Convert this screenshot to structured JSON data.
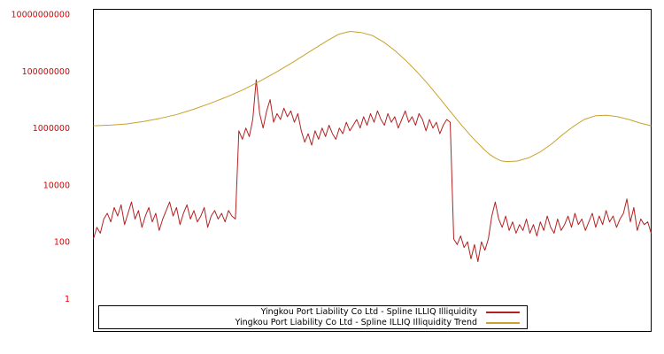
{
  "chart_data": {
    "type": "line",
    "title": "",
    "xlabel": "",
    "ylabel": "",
    "y_scale": "log",
    "grid": false,
    "legend_position": "bottom-center-inside",
    "axis_label_color": "#dd0000",
    "plot_border_color": "#000000",
    "background_color": "#ffffff",
    "y_tick_labels": [
      "1",
      "100",
      "10000",
      "1000000",
      "100000000",
      "10000000000"
    ],
    "y_tick_values": [
      1,
      100,
      10000,
      1000000,
      100000000,
      10000000000
    ],
    "ylim": [
      0.07,
      15000000000
    ],
    "series": [
      {
        "name": "Yingkou Port Liability Co Ltd - Spline ILLIQ Illiquidity",
        "color": "#b22222",
        "x_spacing": "even 0-1",
        "values": [
          125,
          320,
          200,
          630,
          1000,
          500,
          1600,
          800,
          2000,
          400,
          1000,
          2500,
          630,
          1250,
          320,
          800,
          1600,
          500,
          1000,
          250,
          630,
          1250,
          2500,
          800,
          1600,
          400,
          1000,
          2000,
          630,
          1250,
          500,
          800,
          1600,
          320,
          800,
          1250,
          630,
          1000,
          500,
          1250,
          800,
          630,
          800000.0,
          400000.0,
          1000000.0,
          500000.0,
          2000000.0,
          50000000.0,
          3200000.0,
          1000000.0,
          4000000.0,
          10000000.0,
          1600000.0,
          3200000.0,
          2000000.0,
          5000000.0,
          2500000.0,
          4000000.0,
          1600000.0,
          3200000.0,
          800000.0,
          320000.0,
          630000.0,
          250000.0,
          800000.0,
          400000.0,
          1000000.0,
          500000.0,
          1250000.0,
          630000.0,
          400000.0,
          1000000.0,
          630000.0,
          1600000.0,
          800000.0,
          1250000.0,
          2000000.0,
          1000000.0,
          2500000.0,
          1250000.0,
          3200000.0,
          1600000.0,
          4000000.0,
          2000000.0,
          1250000.0,
          3200000.0,
          1600000.0,
          2500000.0,
          1000000.0,
          2000000.0,
          4000000.0,
          1600000.0,
          2500000.0,
          1250000.0,
          3200000.0,
          2000000.0,
          800000.0,
          2000000.0,
          1000000.0,
          1600000.0,
          630000.0,
          1250000.0,
          2000000.0,
          1600000.0,
          125,
          80,
          160,
          63,
          100,
          25,
          80,
          20,
          100,
          50,
          125,
          800,
          2500,
          630,
          320,
          800,
          250,
          500,
          200,
          400,
          250,
          630,
          200,
          400,
          160,
          500,
          250,
          800,
          320,
          200,
          630,
          250,
          400,
          800,
          320,
          1000,
          400,
          630,
          250,
          500,
          1000,
          320,
          800,
          400,
          1250,
          500,
          800,
          320,
          630,
          1000,
          3200,
          500,
          1600,
          250,
          630,
          400,
          500,
          200
        ]
      },
      {
        "name": "Yingkou Port Liability Co Ltd - Spline ILLIQ Illiquidity Trend",
        "color": "#c8a22c",
        "points": [
          [
            0.0,
            1200000.0
          ],
          [
            0.03,
            1260000.0
          ],
          [
            0.06,
            1400000.0
          ],
          [
            0.09,
            1700000.0
          ],
          [
            0.12,
            2200000.0
          ],
          [
            0.15,
            3000000.0
          ],
          [
            0.18,
            4600000.0
          ],
          [
            0.21,
            7400000.0
          ],
          [
            0.24,
            12600000.0
          ],
          [
            0.27,
            23000000.0
          ],
          [
            0.3,
            46000000.0
          ],
          [
            0.33,
            98000000.0
          ],
          [
            0.36,
            220000000.0
          ],
          [
            0.39,
            520000000.0
          ],
          [
            0.42,
            1200000000.0
          ],
          [
            0.44,
            2000000000.0
          ],
          [
            0.46,
            2500000000.0
          ],
          [
            0.48,
            2300000000.0
          ],
          [
            0.5,
            1800000000.0
          ],
          [
            0.52,
            1070000000.0
          ],
          [
            0.54,
            540000000.0
          ],
          [
            0.56,
            240000000.0
          ],
          [
            0.58,
            95000000.0
          ],
          [
            0.6,
            35000000.0
          ],
          [
            0.62,
            11700000.0
          ],
          [
            0.64,
            3800000.0
          ],
          [
            0.66,
            1260000.0
          ],
          [
            0.68,
            450000.0
          ],
          [
            0.7,
            180000.0
          ],
          [
            0.71,
            120000.0
          ],
          [
            0.72,
            89000.0
          ],
          [
            0.73,
            71000.0
          ],
          [
            0.74,
            66000.0
          ],
          [
            0.76,
            69000.0
          ],
          [
            0.78,
            89000.0
          ],
          [
            0.8,
            140000.0
          ],
          [
            0.82,
            260000.0
          ],
          [
            0.84,
            560000.0
          ],
          [
            0.86,
            1120000.0
          ],
          [
            0.88,
            2000000.0
          ],
          [
            0.9,
            2700000.0
          ],
          [
            0.92,
            2800000.0
          ],
          [
            0.94,
            2500000.0
          ],
          [
            0.96,
            2000000.0
          ],
          [
            0.98,
            1500000.0
          ],
          [
            1.0,
            1200000.0
          ]
        ]
      }
    ]
  }
}
